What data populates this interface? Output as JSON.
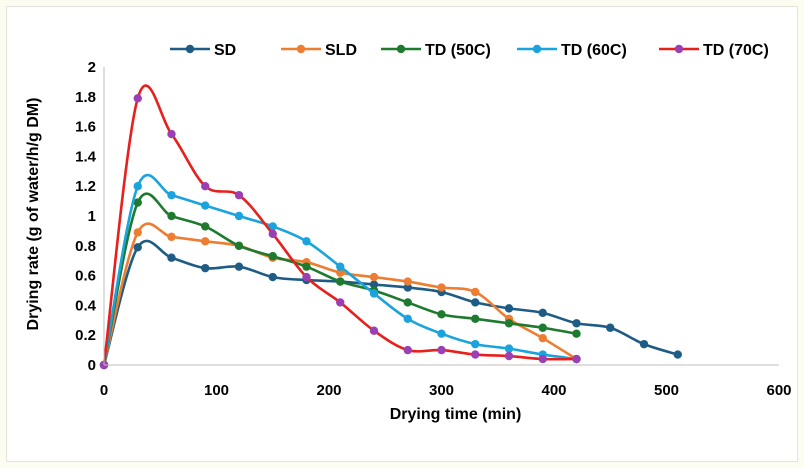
{
  "chart_data": {
    "type": "line",
    "xlabel": "Drying time (min)",
    "ylabel": "Drying rate (g of water/h/g DM)",
    "xlim": [
      0,
      600
    ],
    "ylim": [
      0,
      2
    ],
    "x_ticks": [
      "0",
      "100",
      "200",
      "300",
      "400",
      "500",
      "600"
    ],
    "y_ticks": [
      "0",
      "0.2",
      "0.4",
      "0.6",
      "0.8",
      "1",
      "1.2",
      "1.4",
      "1.6",
      "1.8",
      "2"
    ],
    "grid": false,
    "legend_position": "top",
    "smooth": true,
    "series": [
      {
        "name": "SD",
        "color": "#1f5c85",
        "x": [
          0,
          30,
          60,
          90,
          120,
          150,
          180,
          210,
          240,
          270,
          300,
          330,
          360,
          390,
          420,
          450,
          480,
          510
        ],
        "y": [
          0,
          0.79,
          0.72,
          0.65,
          0.66,
          0.59,
          0.57,
          0.56,
          0.54,
          0.52,
          0.49,
          0.42,
          0.38,
          0.35,
          0.28,
          0.25,
          0.14,
          0.07
        ]
      },
      {
        "name": "SLD",
        "color": "#ed7d31",
        "x": [
          0,
          30,
          60,
          90,
          120,
          150,
          180,
          210,
          240,
          270,
          300,
          330,
          360,
          390,
          420
        ],
        "y": [
          0,
          0.89,
          0.86,
          0.83,
          0.8,
          0.72,
          0.69,
          0.62,
          0.59,
          0.56,
          0.52,
          0.49,
          0.31,
          0.18,
          0.04
        ]
      },
      {
        "name": "TD (50C)",
        "color": "#1e7a2e",
        "x": [
          0,
          30,
          60,
          90,
          120,
          150,
          180,
          210,
          240,
          270,
          300,
          330,
          360,
          390,
          420
        ],
        "y": [
          0,
          1.09,
          1.0,
          0.93,
          0.8,
          0.73,
          0.66,
          0.56,
          0.5,
          0.42,
          0.34,
          0.31,
          0.28,
          0.25,
          0.21
        ]
      },
      {
        "name": "TD (60C)",
        "color": "#1aa3dd",
        "x": [
          0,
          30,
          60,
          90,
          120,
          150,
          180,
          210,
          240,
          270,
          300,
          330,
          360,
          390,
          420
        ],
        "y": [
          0,
          1.2,
          1.14,
          1.07,
          1.0,
          0.93,
          0.83,
          0.66,
          0.48,
          0.31,
          0.21,
          0.14,
          0.11,
          0.07,
          0.04
        ]
      },
      {
        "name": "TD (70C)",
        "color": "#e8201d",
        "marker_color": "#9b3fb5",
        "x": [
          0,
          30,
          60,
          90,
          120,
          150,
          180,
          210,
          240,
          270,
          300,
          330,
          360,
          390,
          420
        ],
        "y": [
          0,
          1.79,
          1.55,
          1.2,
          1.14,
          0.88,
          0.59,
          0.42,
          0.23,
          0.1,
          0.1,
          0.07,
          0.06,
          0.04,
          0.04
        ]
      }
    ]
  }
}
